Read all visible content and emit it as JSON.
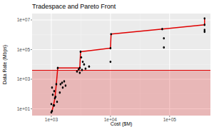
{
  "chart_data": {
    "type": "scatter",
    "title": "Tradespace and Pareto Front",
    "x_label": "Cost ($M)",
    "y_label": "Data Rate (Mbps)",
    "log": true,
    "grid": true,
    "xlim": [
      473,
      490000
    ],
    "ylim": [
      3.5,
      27000000
    ],
    "xticks": [
      {
        "value": 1000,
        "label": "1e+03"
      },
      {
        "value": 10000,
        "label": "1e+04"
      },
      {
        "value": 100000,
        "label": "1e+05"
      }
    ],
    "yticks": [
      {
        "value": 10,
        "label": "1e+01"
      },
      {
        "value": 1000,
        "label": "1e+03"
      },
      {
        "value": 100000,
        "label": "1e+05"
      },
      {
        "value": 10000000,
        "label": "1e+07"
      }
    ],
    "hline": 4000,
    "hline_color": "#e00000",
    "series": [
      {
        "type": "scatter",
        "color": "#000000",
        "marker": "circle",
        "x": [
          1028,
          1087,
          1149,
          1214,
          1284,
          3030,
          3120,
          10000,
          10240,
          75000,
          390000,
          390000,
          2900,
          3030,
          3200,
          3400,
          3580,
          3790,
          3300,
          4350,
          2720,
          10000,
          80000,
          80000,
          390000,
          390000,
          1000,
          1057,
          1118,
          1028,
          1118,
          1250,
          1180,
          1390,
          1560,
          1740,
          1000,
          1430,
          1520,
          1650
        ],
        "values": [
          7.2,
          17,
          52,
          460,
          5800,
          5800,
          72000,
          124000,
          1100000,
          2400000,
          4700000,
          12600000,
          4600,
          2700,
          30000,
          15000,
          10000,
          5200,
          4200,
          7200,
          3340,
          15000,
          580000,
          140000,
          2100000,
          1600000,
          21,
          89,
          155,
          270,
          17,
          30,
          65,
          125,
          270,
          370,
          5.8,
          460,
          580,
          720
        ]
      },
      {
        "type": "line",
        "color": "#e00000",
        "line_style": "solid",
        "x": [
          1028,
          1087,
          1149,
          1214,
          1284,
          3030,
          3120,
          10000,
          10240,
          75000,
          390000,
          390000
        ],
        "values": [
          7.2,
          17,
          52,
          460,
          5800,
          5800,
          72000,
          124000,
          1100000,
          2400000,
          4700000,
          12600000
        ]
      }
    ]
  }
}
